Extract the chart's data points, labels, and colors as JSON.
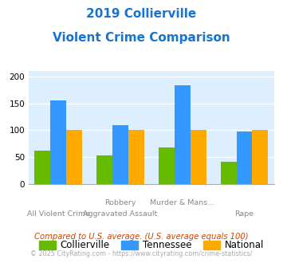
{
  "title_line1": "2019 Collierville",
  "title_line2": "Violent Crime Comparison",
  "title_color": "#1874cd",
  "cat_labels_top": [
    "",
    "Robbery",
    "Murder & Mans...",
    ""
  ],
  "cat_labels_bot": [
    "All Violent Crime",
    "Aggravated Assault",
    "",
    "Rape"
  ],
  "collierville": [
    62,
    54,
    68,
    42
  ],
  "tennessee": [
    156,
    110,
    183,
    97
  ],
  "national": [
    100,
    100,
    100,
    100
  ],
  "collierville_color": "#66bb00",
  "tennessee_color": "#3399ff",
  "national_color": "#ffaa00",
  "ylim": [
    0,
    210
  ],
  "yticks": [
    0,
    50,
    100,
    150,
    200
  ],
  "plot_bg": "#ddeeff",
  "footnote1": "Compared to U.S. average. (U.S. average equals 100)",
  "footnote2": "© 2025 CityRating.com - https://www.cityrating.com/crime-statistics/",
  "footnote1_color": "#cc4400",
  "footnote2_color": "#aaaaaa",
  "legend_labels": [
    "Collierville",
    "Tennessee",
    "National"
  ]
}
